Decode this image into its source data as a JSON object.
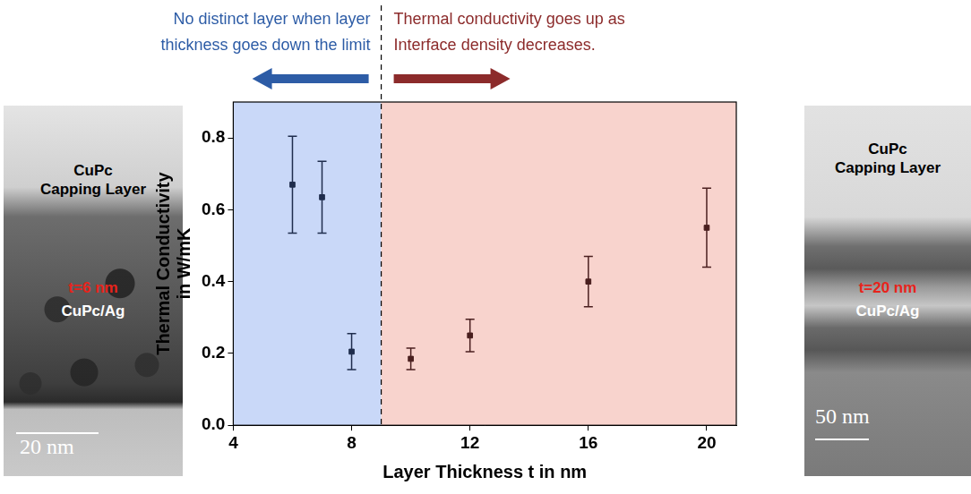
{
  "chart_data": {
    "type": "scatter",
    "x_label": "Layer Thickness t in nm",
    "y_label": [
      "Thermal Conductivity",
      "in W/mK"
    ],
    "xlim": [
      4,
      21
    ],
    "xticks": [
      4,
      8,
      12,
      16,
      20
    ],
    "ylim": [
      0,
      0.9
    ],
    "yticks": [
      {
        "value": 0,
        "label": "0.0"
      },
      0.2,
      0.4,
      0.6,
      0.8
    ],
    "grid": false,
    "marker": "square",
    "series": [
      {
        "color": "#1f2d4d",
        "x": [
          6,
          7,
          8
        ],
        "values": [
          0.67,
          0.635,
          0.205
        ],
        "error": [
          0.135,
          0.1,
          0.05
        ]
      },
      {
        "color": "#4a1f1f",
        "x": [
          10,
          12,
          16,
          20
        ],
        "values": [
          0.185,
          0.25,
          0.4,
          0.55
        ],
        "error": [
          0.03,
          0.045,
          0.07,
          0.11
        ]
      }
    ],
    "regions": [
      {
        "xlim": [
          4,
          9
        ],
        "color": "#c9d8f8"
      },
      {
        "xlim": [
          9,
          21
        ],
        "color": "#f8d3cd"
      }
    ],
    "divider": 9,
    "annotations": [
      {
        "text": [
          "No distinct layer when layer",
          "thickness goes down the limit"
        ],
        "color": "#2d5ca6",
        "direction": "left"
      },
      {
        "text": [
          "Thermal conductivity goes up as",
          "Interface density decreases."
        ],
        "color": "#8c2b2b",
        "direction": "right"
      }
    ]
  },
  "images": [
    {
      "capping": [
        "CuPc",
        "Capping Layer"
      ],
      "thickness": "t=6 nm",
      "material": "CuPc/Ag",
      "scale_bar": "20 nm"
    },
    {
      "capping": [
        "CuPc",
        "Capping Layer"
      ],
      "thickness": "t=20 nm",
      "material": "CuPc/Ag",
      "scale_bar": "50 nm"
    }
  ]
}
